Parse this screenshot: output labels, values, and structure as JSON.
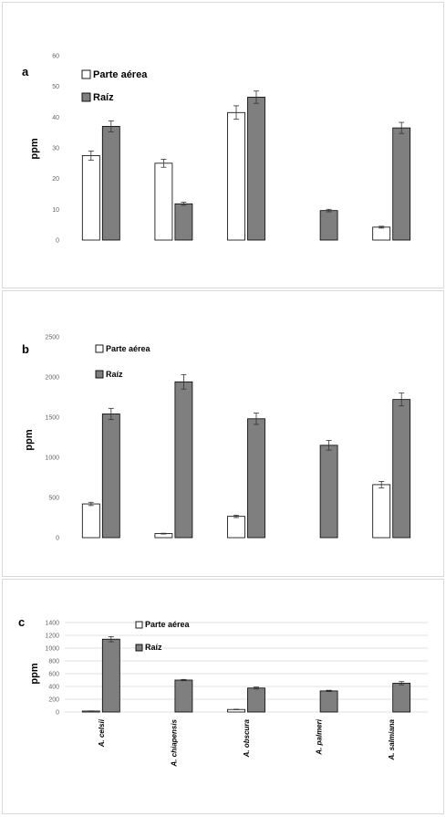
{
  "chart_data": [
    {
      "type": "bar",
      "panel_label": "a",
      "ylabel": "ppm",
      "ylim": [
        0,
        60
      ],
      "yticks": [
        "0",
        "10",
        "20",
        "30",
        "40",
        "50",
        "60"
      ],
      "grid": false,
      "legend_position": "top-left",
      "categories": [
        "A. celsii",
        "A. chiapensis",
        "A. obscura",
        "A. palmeri",
        "A. salmiana"
      ],
      "show_category_labels": false,
      "series": [
        {
          "name": "Parte aérea",
          "values": [
            27.5,
            25,
            41.5,
            null,
            4.2
          ],
          "errors": [
            1.5,
            1.3,
            2.2,
            null,
            0.3
          ],
          "color": "#ffffff"
        },
        {
          "name": "Raíz",
          "values": [
            37,
            11.8,
            46.5,
            9.6,
            36.5
          ],
          "errors": [
            1.8,
            0.5,
            2.0,
            0.4,
            1.8
          ],
          "color": "#7f7f7f"
        }
      ]
    },
    {
      "type": "bar",
      "panel_label": "b",
      "ylabel": "ppm",
      "ylim": [
        0,
        2500
      ],
      "yticks": [
        "0",
        "500",
        "1000",
        "1500",
        "2000",
        "2500"
      ],
      "grid": false,
      "legend_position": "top-left",
      "categories": [
        "A. celsii",
        "A. chiapensis",
        "A. obscura",
        "A. palmeri",
        "A. salmiana"
      ],
      "show_category_labels": false,
      "series": [
        {
          "name": "Parte aérea",
          "values": [
            420,
            50,
            265,
            null,
            660
          ],
          "errors": [
            20,
            5,
            15,
            null,
            40
          ],
          "color": "#ffffff"
        },
        {
          "name": "Raíz",
          "values": [
            1540,
            1940,
            1480,
            1150,
            1720
          ],
          "errors": [
            70,
            90,
            70,
            60,
            80
          ],
          "color": "#7f7f7f"
        }
      ]
    },
    {
      "type": "bar",
      "panel_label": "c",
      "ylabel": "ppm",
      "ylim": [
        0,
        1400
      ],
      "yticks": [
        "0",
        "200",
        "400",
        "600",
        "800",
        "1000",
        "1200",
        "1400"
      ],
      "grid": true,
      "legend_position": "top-center",
      "categories": [
        "A. celsii",
        "A. chiapensis",
        "A. obscura",
        "A. palmeri",
        "A. salmiana"
      ],
      "show_category_labels": true,
      "series": [
        {
          "name": "Parte aérea",
          "values": [
            15,
            null,
            40,
            null,
            null
          ],
          "errors": [
            3,
            null,
            4,
            null,
            null
          ],
          "color": "#ffffff"
        },
        {
          "name": "Raíz",
          "values": [
            1140,
            500,
            375,
            330,
            450
          ],
          "errors": [
            40,
            10,
            15,
            10,
            25
          ],
          "color": "#7f7f7f"
        }
      ]
    }
  ]
}
